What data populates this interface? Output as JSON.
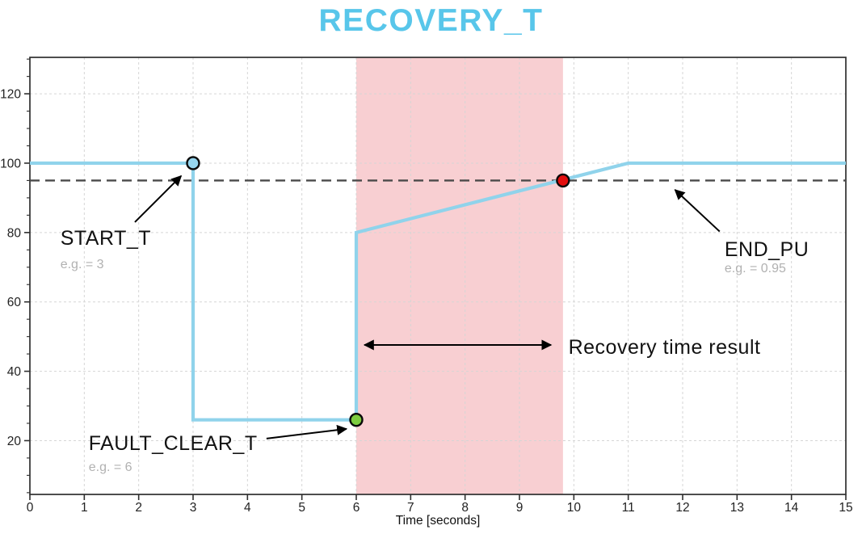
{
  "page_title": "RECOVERY_T",
  "chart_data": {
    "type": "line",
    "title": "RECOVERY_T",
    "xlabel": "Time [seconds]",
    "ylabel": "",
    "xlim": [
      0,
      15
    ],
    "ylim": [
      4.5,
      130.5
    ],
    "x_ticks": [
      0,
      1,
      2,
      3,
      4,
      5,
      6,
      7,
      8,
      9,
      10,
      11,
      12,
      13,
      14,
      15
    ],
    "y_ticks": [
      20,
      40,
      60,
      80,
      100,
      120
    ],
    "y_minor_tick_step": 5,
    "grid": true,
    "legend": false,
    "series": [
      {
        "name": "voltage-response",
        "color": "#90D3EB",
        "line_width": 4,
        "points": [
          [
            0,
            100
          ],
          [
            3,
            100
          ],
          [
            3,
            26
          ],
          [
            6,
            26
          ],
          [
            6,
            80
          ],
          [
            11,
            100
          ],
          [
            15,
            100
          ]
        ]
      }
    ],
    "threshold_line": {
      "y": 95,
      "style": "dashed",
      "color": "#4A4A4A"
    },
    "shaded_region": {
      "x_start": 6,
      "x_end": 9.8,
      "color": "#F8CFD2"
    },
    "markers": [
      {
        "name": "start-point",
        "x": 3,
        "y": 100,
        "fill": "#96D6EF"
      },
      {
        "name": "fault-clear-point",
        "x": 6,
        "y": 26,
        "fill": "#7DCC3F"
      },
      {
        "name": "end-point",
        "x": 9.8,
        "y": 95,
        "fill": "#E30D0D"
      }
    ],
    "annotations": [
      {
        "name": "start-t",
        "text": "START_T",
        "sub": "e.g. = 3",
        "text_xy": [
          0.56,
          76.5
        ],
        "sub_xy": [
          0.56,
          69.7
        ],
        "arrow_from": [
          1.93,
          83.0
        ],
        "arrow_to": [
          2.78,
          96.3
        ]
      },
      {
        "name": "fault-clear-t",
        "text": "FAULT_CLEAR_T",
        "sub": "e.g. = 6",
        "text_xy": [
          1.08,
          17.3
        ],
        "sub_xy": [
          1.08,
          11.2
        ],
        "arrow_from": [
          4.35,
          20.6
        ],
        "arrow_to": [
          5.82,
          23.4
        ]
      },
      {
        "name": "end-pu",
        "text": "END_PU",
        "sub": "e.g. = 0.95",
        "text_xy": [
          12.77,
          73.2
        ],
        "sub_xy": [
          12.77,
          68.5
        ],
        "arrow_from": [
          12.68,
          80.3
        ],
        "arrow_to": [
          11.86,
          92.3
        ]
      },
      {
        "name": "recovery-time-result",
        "text": "Recovery time result",
        "text_xy": [
          9.9,
          45.0
        ],
        "double_arrow_from": [
          6.15,
          47.6
        ],
        "double_arrow_to": [
          9.58,
          47.6
        ]
      }
    ],
    "colors": {
      "title": "#58C6EA",
      "line": "#90D3EB",
      "grid": "#D5D5D5",
      "axis": "#2F2F2F",
      "region": "#F8CFD2",
      "threshold": "#4A4A4A",
      "annotation_text": "#121212",
      "example_text": "#B1B1B1",
      "start_marker": "#96D6EF",
      "fault_clear_marker": "#7DCC3F",
      "end_marker": "#E30D0D"
    }
  }
}
